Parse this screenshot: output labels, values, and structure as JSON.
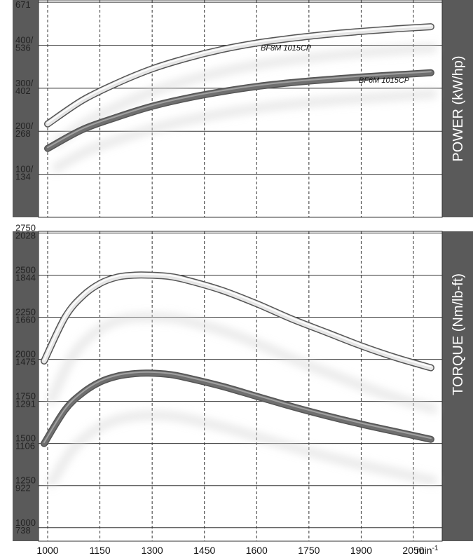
{
  "chart_data": [
    {
      "type": "line",
      "ylabel": "POWER  (kW/hp)",
      "yticks": [
        {
          "value": 100,
          "kw": "100/",
          "hp": "134"
        },
        {
          "value": 200,
          "kw": "200/",
          "hp": "268"
        },
        {
          "value": 300,
          "kw": "300/",
          "hp": "402"
        },
        {
          "value": 400,
          "kw": "400/",
          "hp": "536"
        },
        {
          "value": 500,
          "kw": "500/",
          "hp": "671"
        }
      ],
      "ylim": [
        0,
        505
      ],
      "x": [
        1000,
        1100,
        1200,
        1300,
        1400,
        1500,
        1600,
        1700,
        1800,
        1900,
        2000,
        2100
      ],
      "series": [
        {
          "name": "BF8M 1015CP",
          "color": "#e6e6e6",
          "values": [
            217,
            272,
            312,
            345,
            370,
            390,
            405,
            416,
            425,
            432,
            438,
            443
          ]
        },
        {
          "name": "BF6M 1015CP",
          "color": "#6f6f6f",
          "values": [
            160,
            204,
            233,
            258,
            277,
            292,
            304,
            313,
            320,
            326,
            331,
            336
          ]
        }
      ]
    },
    {
      "type": "line",
      "ylabel": "TORQUE  (Nm/lb-ft)",
      "yticks": [
        {
          "value": 1000,
          "nm": "1000",
          "lbft": "738"
        },
        {
          "value": 1250,
          "nm": "1250",
          "lbft": "922"
        },
        {
          "value": 1500,
          "nm": "1500",
          "lbft": "1106"
        },
        {
          "value": 1750,
          "nm": "1750",
          "lbft": "1291"
        },
        {
          "value": 2000,
          "nm": "2000",
          "lbft": "1475"
        },
        {
          "value": 2250,
          "nm": "2250",
          "lbft": "1660"
        },
        {
          "value": 2500,
          "nm": "2500",
          "lbft": "1844"
        },
        {
          "value": 2750,
          "nm": "2750",
          "lbft": "2028"
        }
      ],
      "ylim": [
        920,
        2760
      ],
      "x": [
        990,
        1050,
        1100,
        1150,
        1200,
        1250,
        1290,
        1350,
        1400,
        1500,
        1600,
        1700,
        1800,
        1900,
        2000,
        2100
      ],
      "series": [
        {
          "name": "BF8M 1015CP",
          "color": "#e6e6e6",
          "values": [
            1990,
            2250,
            2375,
            2450,
            2488,
            2500,
            2500,
            2492,
            2470,
            2410,
            2330,
            2240,
            2160,
            2080,
            2010,
            1950
          ]
        },
        {
          "name": "BF6M 1015CP",
          "color": "#6f6f6f",
          "values": [
            1500,
            1700,
            1800,
            1865,
            1900,
            1915,
            1918,
            1910,
            1890,
            1840,
            1780,
            1720,
            1665,
            1615,
            1570,
            1525
          ]
        }
      ]
    }
  ],
  "xaxis": {
    "ticks": [
      "1000",
      "1150",
      "1300",
      "1450",
      "1600",
      "1750",
      "1900",
      "2050"
    ],
    "tick_values": [
      1000,
      1150,
      1300,
      1450,
      1600,
      1750,
      1900,
      2050
    ],
    "unit": "min",
    "unit_sup": "-1"
  }
}
